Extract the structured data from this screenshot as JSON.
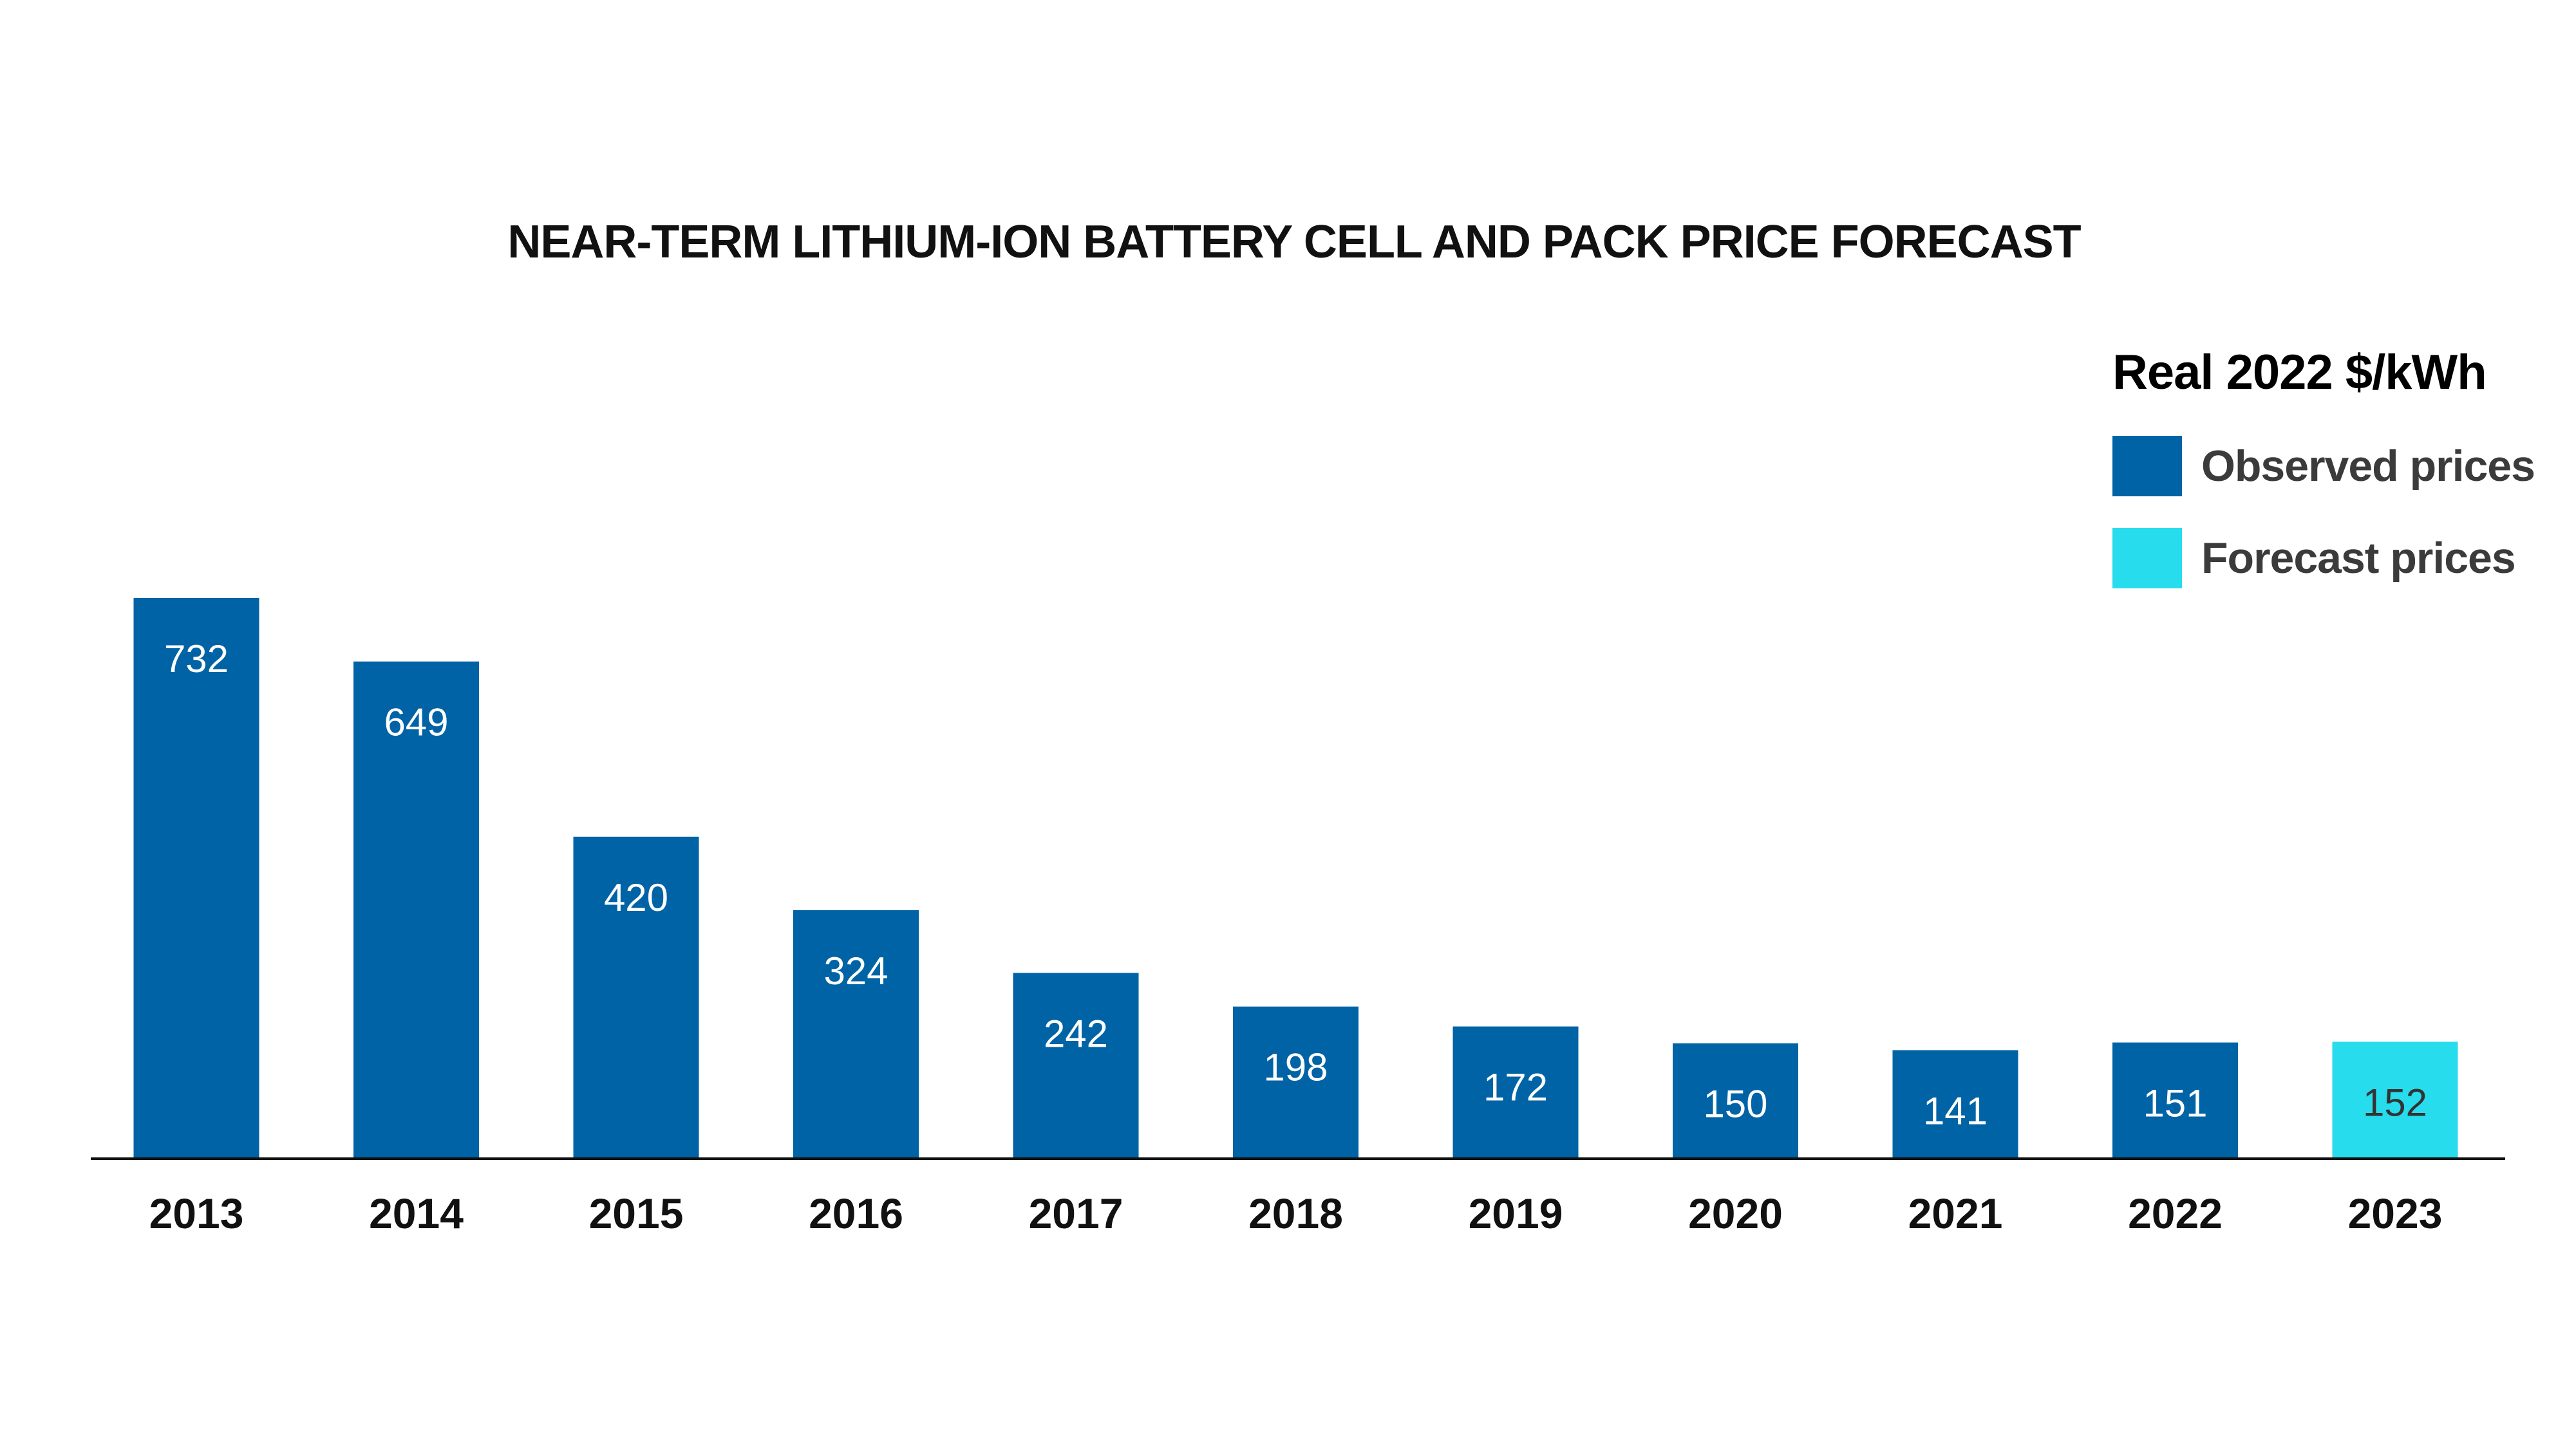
{
  "chart_data": {
    "type": "bar",
    "title": "NEAR-TERM LITHIUM-ION BATTERY CELL AND PACK PRICE FORECAST",
    "ylabel": "",
    "xlabel": "",
    "unit_label": "Real 2022 $/kWh",
    "categories": [
      "2013",
      "2014",
      "2015",
      "2016",
      "2017",
      "2018",
      "2019",
      "2020",
      "2021",
      "2022",
      "2023"
    ],
    "values": [
      732,
      649,
      420,
      324,
      242,
      198,
      172,
      150,
      141,
      151,
      152
    ],
    "bar_type": [
      "observed",
      "observed",
      "observed",
      "observed",
      "observed",
      "observed",
      "observed",
      "observed",
      "observed",
      "observed",
      "forecast"
    ],
    "ylim": [
      0,
      732
    ],
    "grid": false,
    "legend_position": "top-right",
    "legend": [
      {
        "key": "observed",
        "label": "Observed prices",
        "color": "#0063a6"
      },
      {
        "key": "forecast",
        "label": "Forecast prices",
        "color": "#27dcec"
      }
    ],
    "data_label_colors": {
      "observed": "#ffffff",
      "forecast": "#333333"
    }
  }
}
